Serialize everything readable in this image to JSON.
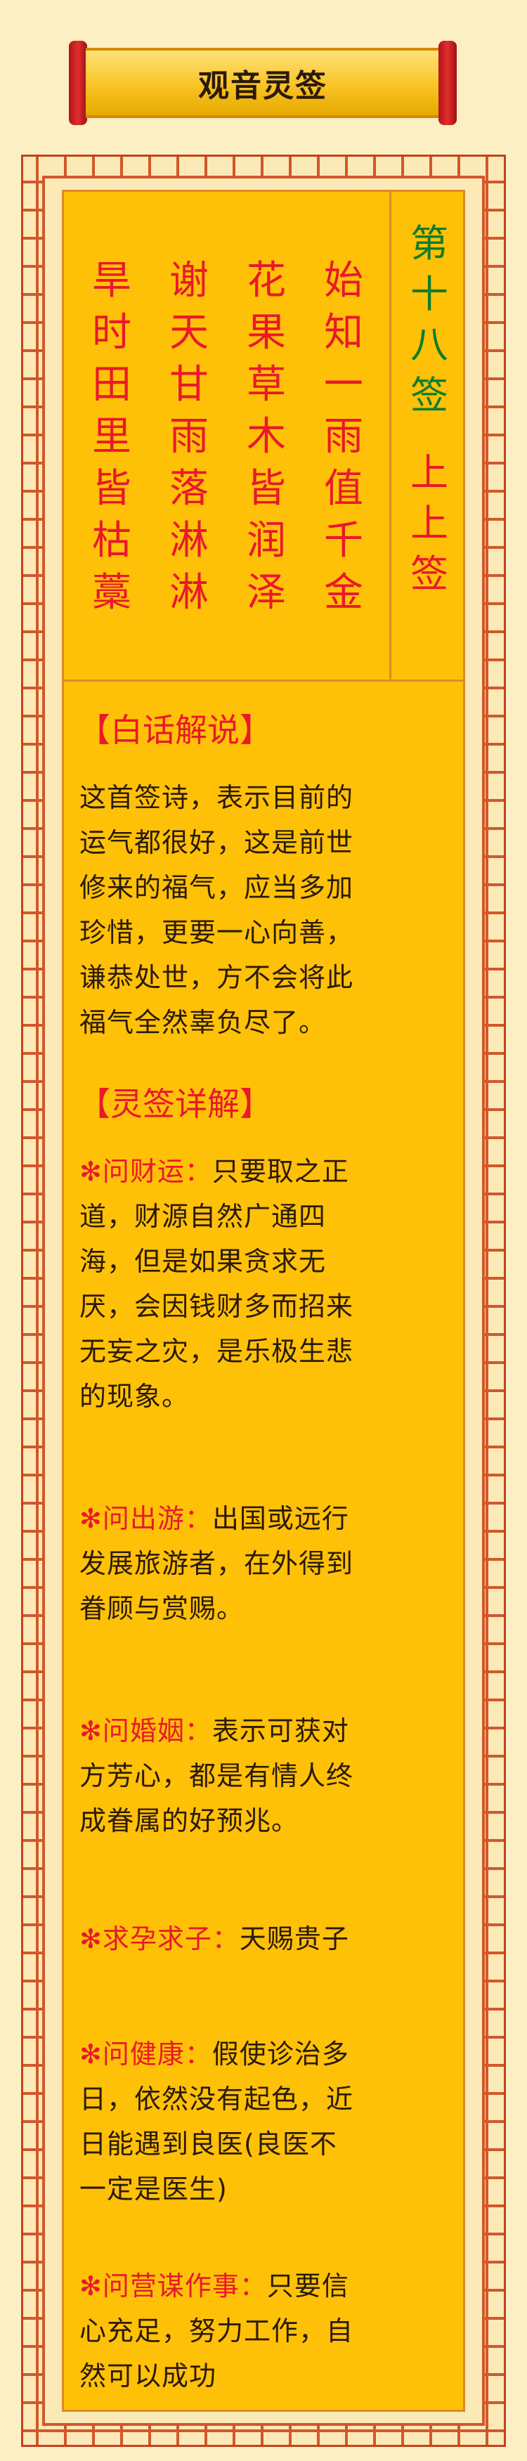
{
  "banner": {
    "title": "观音灵签"
  },
  "poem": {
    "columns": [
      [
        "始",
        "知",
        "一",
        "雨",
        "值",
        "千",
        "金"
      ],
      [
        "花",
        "果",
        "草",
        "木",
        "皆",
        "润",
        "泽"
      ],
      [
        "谢",
        "天",
        "甘",
        "雨",
        "落",
        "淋",
        "淋"
      ],
      [
        "旱",
        "时",
        "田",
        "里",
        "皆",
        "枯",
        "藁"
      ]
    ],
    "number": [
      "第",
      "十",
      "八",
      "签"
    ],
    "grade": [
      "上",
      "上",
      "签"
    ]
  },
  "baihua": {
    "title": "【白话解说】",
    "lines": [
      "这首签诗，表示目前的",
      "运气都很好，这是前世",
      "修来的福气，应当多加",
      "珍惜，更要一心向善，",
      "谦恭处世，方不会将此",
      "福气全然辜负尽了。"
    ]
  },
  "xiangjie": {
    "title": "【灵签详解】",
    "items": [
      {
        "star": "✻",
        "key": "问财运：",
        "lines": [
          "只要取之正",
          "道，财源自然广通四",
          "海，但是如果贪求无",
          "厌，会因钱财多而招来",
          "无妄之灾，是乐极生悲",
          "的现象。"
        ]
      },
      {
        "star": "✻",
        "key": "问出游：",
        "lines": [
          "出国或远行",
          "发展旅游者，在外得到",
          "眷顾与赏赐。"
        ]
      },
      {
        "star": "✻",
        "key": "问婚姻：",
        "lines": [
          "表示可获对",
          "方芳心，都是有情人终",
          "成眷属的好预兆。"
        ]
      },
      {
        "star": "✻",
        "key": "求孕求子：",
        "lines": [
          "天赐贵子"
        ]
      },
      {
        "star": "✻",
        "key": "问健康：",
        "lines": [
          "假使诊治多",
          "日，依然没有起色，近",
          "日能遇到良医(良医不",
          "一定是医生)"
        ]
      },
      {
        "star": "✻",
        "key": "问营谋作事：",
        "lines": [
          "只要信",
          "心充足，努力工作，自",
          "然可以成功"
        ]
      }
    ]
  },
  "colors": {
    "red": "#e8192b",
    "green": "#0f7d2d",
    "gold": "#ffc107",
    "border": "#d2572a"
  }
}
